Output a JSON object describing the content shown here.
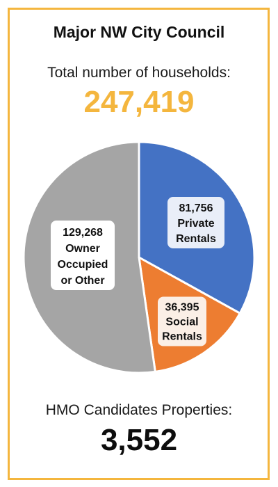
{
  "header": {
    "title": "Major NW City Council",
    "subtitle": "Total number of households:",
    "total": "247,419"
  },
  "chart_data": {
    "type": "pie",
    "total": 247419,
    "slices": [
      {
        "name": "Private Rentals",
        "value": 81756,
        "label": [
          "81,756",
          "Private",
          "Rentals"
        ],
        "color": "#4472c4"
      },
      {
        "name": "Social Rentals",
        "value": 36395,
        "label": [
          "36,395",
          "Social",
          "Rentals"
        ],
        "color": "#ed7d31"
      },
      {
        "name": "Owner Occupied or Other",
        "value": 129268,
        "label": [
          "129,268",
          "Owner",
          "Occupied",
          "or Other"
        ],
        "color": "#a5a5a5"
      }
    ],
    "start_angle_deg": 0,
    "direction": "clockwise"
  },
  "footer": {
    "label": "HMO Candidates Properties:",
    "value": "3,552"
  },
  "colors": {
    "accent": "#f4b63e",
    "border": "#f4b63e"
  }
}
